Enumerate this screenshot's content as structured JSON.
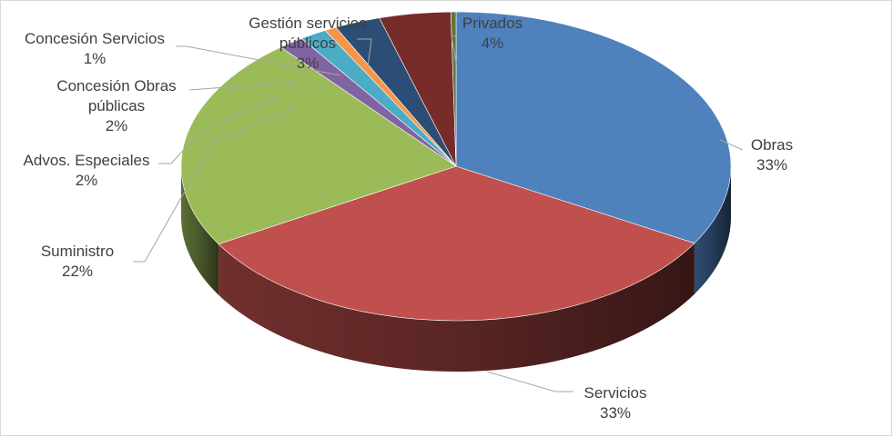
{
  "chart_data": {
    "type": "pie",
    "style": "3d",
    "title": "",
    "slices": [
      {
        "category": "Obras",
        "percent_label": "33%",
        "value": 33.3,
        "color": "#4f81bd"
      },
      {
        "category": "Servicios",
        "percent_label": "33%",
        "value": 33.3,
        "color": "#c0504d"
      },
      {
        "category": "Suministro",
        "percent_label": "22%",
        "value": 22.4,
        "color": "#9bbb59"
      },
      {
        "category": "Advos. Especiales",
        "percent_label": "2%",
        "value": 1.5,
        "color": "#8064a2"
      },
      {
        "category": "Concesión Obras públicas",
        "percent_label": "2%",
        "value": 1.6,
        "color": "#4bacc6"
      },
      {
        "category": "Concesión Servicios",
        "percent_label": "1%",
        "value": 0.7,
        "color": "#f79646"
      },
      {
        "category": "Gestión servicios públicos",
        "percent_label": "3%",
        "value": 2.7,
        "color": "#2c4d75"
      },
      {
        "category": "Privados",
        "percent_label": "4%",
        "value": 4.2,
        "color": "#772c2a"
      },
      {
        "category": "",
        "percent_label": "",
        "value": 0.3,
        "color": "#5f7530"
      }
    ],
    "labels": [
      {
        "lines": [
          "Obras",
          "33%"
        ]
      },
      {
        "lines": [
          "Servicios",
          "33%"
        ]
      },
      {
        "lines": [
          "Suministro",
          "22%"
        ]
      },
      {
        "lines": [
          "Advos. Especiales",
          "2%"
        ]
      },
      {
        "lines": [
          "Concesión Obras",
          "públicas",
          "2%"
        ]
      },
      {
        "lines": [
          "Concesión Servicios",
          "1%"
        ]
      },
      {
        "lines": [
          "Gestión servicios",
          "públicos",
          "3%"
        ]
      },
      {
        "lines": [
          "Privados",
          "4%"
        ]
      }
    ]
  }
}
